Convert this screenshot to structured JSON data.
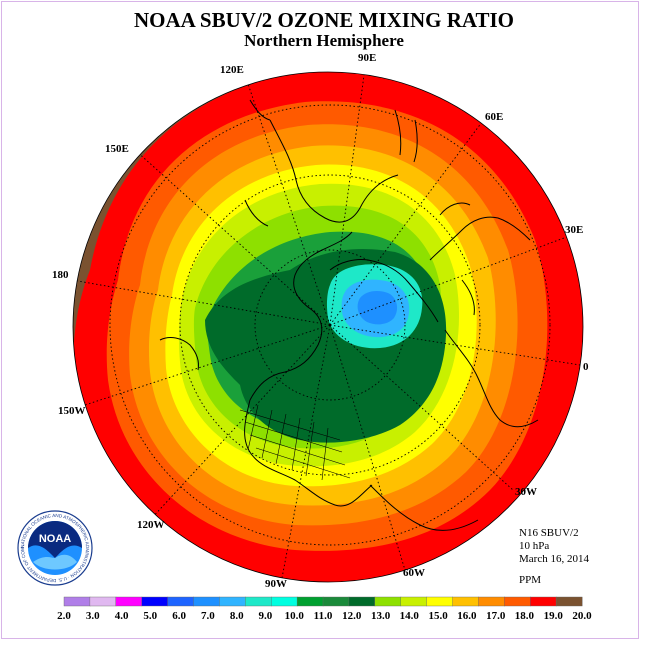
{
  "header": {
    "title": "NOAA SBUV/2 OZONE MIXING RATIO",
    "subtitle": "Northern Hemisphere"
  },
  "map": {
    "projection": "north-polar-stereographic",
    "longitude_labels": [
      "90E",
      "60E",
      "30E",
      "0",
      "30W",
      "60W",
      "90W",
      "120W",
      "150W",
      "180",
      "150E",
      "120E"
    ],
    "contour_bands": [
      {
        "range": "19.0-20.0",
        "color": "#7a5230"
      },
      {
        "range": "18.0-19.0",
        "color": "#ff0000"
      },
      {
        "range": "17.0-18.0",
        "color": "#ff5a00"
      },
      {
        "range": "16.0-17.0",
        "color": "#ff8c00"
      },
      {
        "range": "15.0-16.0",
        "color": "#ffc000"
      },
      {
        "range": "14.0-15.0",
        "color": "#ffff00"
      },
      {
        "range": "13.0-14.0",
        "color": "#c8f000"
      },
      {
        "range": "12.0-13.0",
        "color": "#8ee000"
      },
      {
        "range": "11.0-12.0",
        "color": "#1aa03a"
      },
      {
        "range": "10.0-11.0",
        "color": "#006b2a"
      },
      {
        "range": "9.0-10.0",
        "color": "#1ee8c8"
      },
      {
        "range": "8.0-9.0",
        "color": "#30b4ff"
      },
      {
        "range": "7.0-8.0",
        "color": "#1e90ff"
      }
    ]
  },
  "info": {
    "instrument": "N16 SBUV/2",
    "level": "10 hPa",
    "date": "March 16, 2014",
    "unit": "PPM"
  },
  "logo": {
    "text": "NOAA",
    "ring_text": "NATIONAL OCEANIC AND ATMOSPHERIC ADMINISTRATION · U.S. DEPARTMENT OF COMMERCE"
  },
  "colorbar": {
    "ticks": [
      "2.0",
      "3.0",
      "4.0",
      "5.0",
      "6.0",
      "7.0",
      "8.0",
      "9.0",
      "10.0",
      "11.0",
      "12.0",
      "13.0",
      "14.0",
      "15.0",
      "16.0",
      "17.0",
      "18.0",
      "19.0",
      "20.0"
    ],
    "colors": [
      "#b07ee8",
      "#e0b8f0",
      "#ff00ff",
      "#0000ff",
      "#1e64ff",
      "#1e90ff",
      "#30b4ff",
      "#1ee8c8",
      "#00ffe0",
      "#00a030",
      "#1a8a3a",
      "#006b2a",
      "#8ee000",
      "#c8f000",
      "#ffff00",
      "#ffc000",
      "#ff8c00",
      "#ff5a00",
      "#ff0000",
      "#7a5230"
    ]
  }
}
